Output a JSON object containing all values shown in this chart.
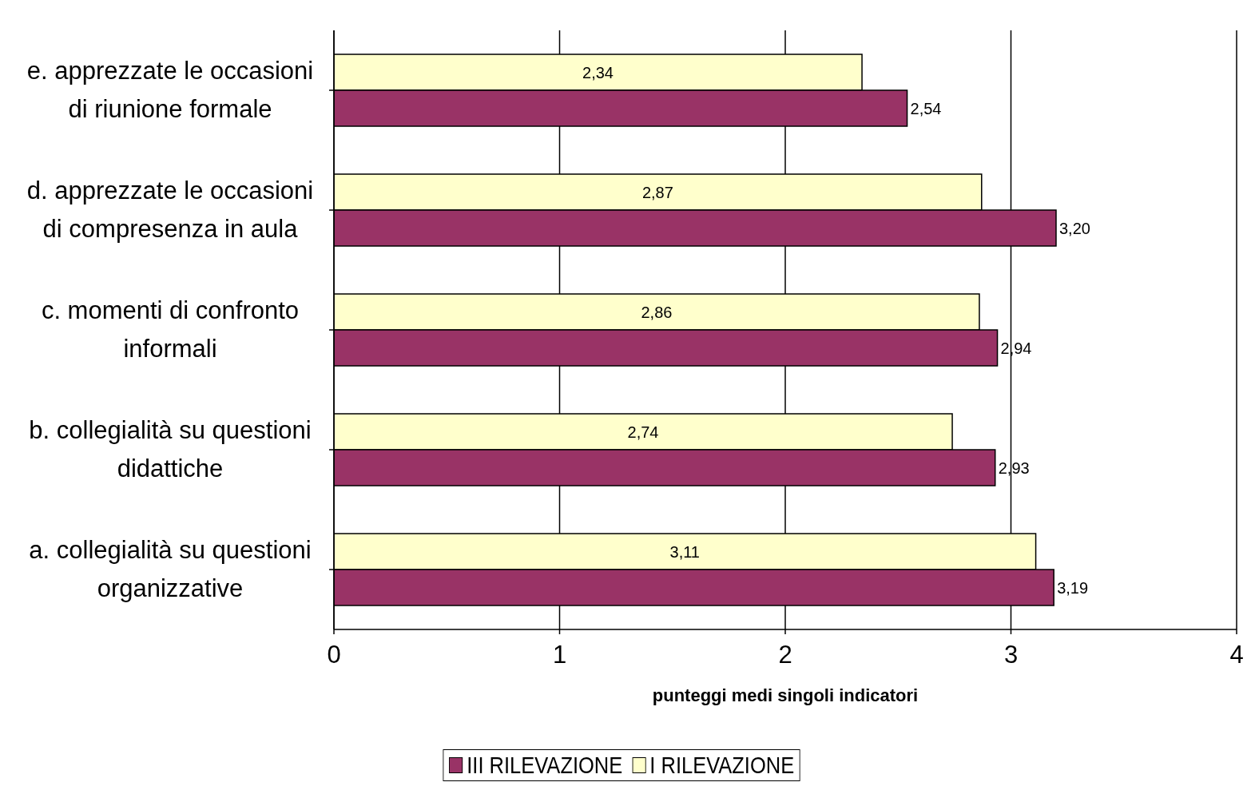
{
  "chart_data": {
    "type": "bar",
    "orientation": "horizontal",
    "xlabel": "punteggi medi singoli indicatori",
    "categories": [
      "e. apprezzate le occasioni di riunione formale",
      "d. apprezzate le occasioni di compresenza in aula",
      "c. momenti di confronto informali",
      "b. collegialità su questioni didattiche",
      "a. collegialità su questioni organizzative"
    ],
    "series": [
      {
        "name": "III RILEVAZIONE",
        "color": "#993366",
        "values": [
          2.54,
          3.2,
          2.94,
          2.93,
          3.19
        ],
        "value_labels": [
          "2,54",
          "3,20",
          "2,94",
          "2,93",
          "3,19"
        ]
      },
      {
        "name": "I RILEVAZIONE",
        "color": "#ffffcc",
        "values": [
          2.34,
          2.87,
          2.86,
          2.74,
          3.11
        ],
        "value_labels": [
          "2,34",
          "2,87",
          "2,86",
          "2,74",
          "3,11"
        ]
      }
    ],
    "xlim": [
      0,
      4
    ],
    "xticks": [
      0,
      1,
      2,
      3,
      4
    ],
    "grid": "x",
    "legend": "bottom"
  }
}
